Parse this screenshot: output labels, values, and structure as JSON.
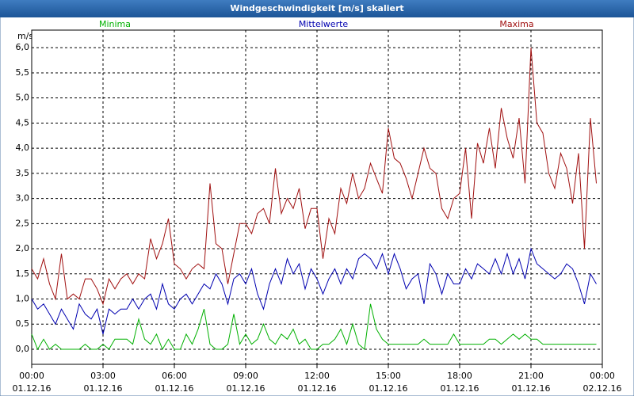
{
  "chart_data": {
    "type": "line",
    "title": "Windgeschwindigkeit [m/s] skaliert",
    "ylabel": "m/s",
    "grid": true,
    "xlim": [
      0,
      24
    ],
    "xticks": [
      {
        "value": 0,
        "label": "00:00"
      },
      {
        "value": 3,
        "label": "03:00"
      },
      {
        "value": 6,
        "label": "06:00"
      },
      {
        "value": 9,
        "label": "09:00"
      },
      {
        "value": 12,
        "label": "12:00"
      },
      {
        "value": 15,
        "label": "15:00"
      },
      {
        "value": 18,
        "label": "18:00"
      },
      {
        "value": 21,
        "label": "21:00"
      },
      {
        "value": 24,
        "label": "00:00"
      }
    ],
    "xtick_dates": [
      "01.12.16",
      "01.12.16",
      "01.12.16",
      "01.12.16",
      "01.12.16",
      "01.12.16",
      "01.12.16",
      "01.12.16",
      "02.12.16"
    ],
    "ylim": [
      -0.3,
      6.35
    ],
    "yticks": [
      {
        "value": 0,
        "label": "0,0"
      },
      {
        "value": 0.5,
        "label": "0,5"
      },
      {
        "value": 1,
        "label": "1,0"
      },
      {
        "value": 1.5,
        "label": "1,5"
      },
      {
        "value": 2,
        "label": "2,0"
      },
      {
        "value": 2.5,
        "label": "2,5"
      },
      {
        "value": 3,
        "label": "3,0"
      },
      {
        "value": 3.5,
        "label": "3,5"
      },
      {
        "value": 4,
        "label": "4,0"
      },
      {
        "value": 4.5,
        "label": "4,5"
      },
      {
        "value": 5,
        "label": "5,0"
      },
      {
        "value": 5.5,
        "label": "5,5"
      },
      {
        "value": 6,
        "label": "6,0"
      }
    ],
    "x": [
      0,
      0.25,
      0.5,
      0.75,
      1,
      1.25,
      1.5,
      1.75,
      2,
      2.25,
      2.5,
      2.75,
      3,
      3.25,
      3.5,
      3.75,
      4,
      4.25,
      4.5,
      4.75,
      5,
      5.25,
      5.5,
      5.75,
      6,
      6.25,
      6.5,
      6.75,
      7,
      7.25,
      7.5,
      7.75,
      8,
      8.25,
      8.5,
      8.75,
      9,
      9.25,
      9.5,
      9.75,
      10,
      10.25,
      10.5,
      10.75,
      11,
      11.25,
      11.5,
      11.75,
      12,
      12.25,
      12.5,
      12.75,
      13,
      13.25,
      13.5,
      13.75,
      14,
      14.25,
      14.5,
      14.75,
      15,
      15.25,
      15.5,
      15.75,
      16,
      16.25,
      16.5,
      16.75,
      17,
      17.25,
      17.5,
      17.75,
      18,
      18.25,
      18.5,
      18.75,
      19,
      19.25,
      19.5,
      19.75,
      20,
      20.25,
      20.5,
      20.75,
      21,
      21.25,
      21.5,
      21.75,
      22,
      22.25,
      22.5,
      22.75,
      23,
      23.25,
      23.5,
      23.75
    ],
    "series": [
      {
        "name": "Minima",
        "color": "#00b000",
        "values": [
          0.3,
          0.0,
          0.2,
          0.0,
          0.1,
          0.0,
          0.0,
          0.0,
          0.0,
          0.1,
          0.0,
          0.0,
          0.1,
          0.0,
          0.2,
          0.2,
          0.2,
          0.1,
          0.6,
          0.2,
          0.1,
          0.3,
          0.0,
          0.2,
          0.0,
          0.0,
          0.3,
          0.1,
          0.4,
          0.8,
          0.1,
          0.0,
          0.0,
          0.1,
          0.7,
          0.1,
          0.3,
          0.1,
          0.2,
          0.5,
          0.2,
          0.1,
          0.3,
          0.2,
          0.4,
          0.1,
          0.2,
          0.0,
          0.0,
          0.1,
          0.1,
          0.2,
          0.4,
          0.1,
          0.5,
          0.1,
          0.0,
          0.9,
          0.4,
          0.2,
          0.1,
          0.1,
          0.1,
          0.1,
          0.1,
          0.1,
          0.2,
          0.1,
          0.1,
          0.1,
          0.1,
          0.3,
          0.1,
          0.1,
          0.1,
          0.1,
          0.1,
          0.2,
          0.2,
          0.1,
          0.2,
          0.3,
          0.2,
          0.3,
          0.2,
          0.2,
          0.1,
          0.1,
          0.1,
          0.1,
          0.1,
          0.1,
          0.1,
          0.1,
          0.1,
          0.1
        ]
      },
      {
        "name": "Mittelwerte",
        "color": "#0000b0",
        "values": [
          1.0,
          0.8,
          0.9,
          0.7,
          0.5,
          0.8,
          0.6,
          0.4,
          0.9,
          0.7,
          0.6,
          0.8,
          0.3,
          0.8,
          0.7,
          0.8,
          0.8,
          1.0,
          0.8,
          1.0,
          1.1,
          0.8,
          1.3,
          0.9,
          0.8,
          1.0,
          1.1,
          0.9,
          1.1,
          1.3,
          1.2,
          1.5,
          1.3,
          0.9,
          1.4,
          1.5,
          1.3,
          1.6,
          1.1,
          0.8,
          1.3,
          1.6,
          1.3,
          1.8,
          1.5,
          1.7,
          1.2,
          1.6,
          1.4,
          1.1,
          1.4,
          1.6,
          1.3,
          1.6,
          1.4,
          1.8,
          1.9,
          1.8,
          1.6,
          1.9,
          1.5,
          1.9,
          1.6,
          1.2,
          1.4,
          1.5,
          0.9,
          1.7,
          1.5,
          1.1,
          1.5,
          1.3,
          1.3,
          1.6,
          1.4,
          1.7,
          1.6,
          1.5,
          1.8,
          1.5,
          1.9,
          1.5,
          1.8,
          1.4,
          2.0,
          1.7,
          1.6,
          1.5,
          1.4,
          1.5,
          1.7,
          1.6,
          1.3,
          0.9,
          1.5,
          1.3
        ]
      },
      {
        "name": "Maxima",
        "color": "#a01010",
        "values": [
          1.6,
          1.4,
          1.8,
          1.3,
          1.0,
          1.9,
          1.0,
          1.1,
          1.0,
          1.4,
          1.4,
          1.2,
          0.9,
          1.4,
          1.2,
          1.4,
          1.5,
          1.3,
          1.5,
          1.4,
          2.2,
          1.8,
          2.1,
          2.6,
          1.7,
          1.6,
          1.4,
          1.6,
          1.7,
          1.6,
          3.3,
          2.1,
          2.0,
          1.3,
          1.9,
          2.5,
          2.5,
          2.3,
          2.7,
          2.8,
          2.5,
          3.6,
          2.7,
          3.0,
          2.8,
          3.2,
          2.4,
          2.8,
          2.8,
          1.8,
          2.6,
          2.3,
          3.2,
          2.9,
          3.5,
          3.0,
          3.2,
          3.7,
          3.4,
          3.1,
          4.4,
          3.8,
          3.7,
          3.4,
          3.0,
          3.5,
          4.0,
          3.6,
          3.5,
          2.8,
          2.6,
          3.0,
          3.1,
          4.0,
          2.6,
          4.1,
          3.7,
          4.4,
          3.6,
          4.8,
          4.2,
          3.8,
          4.6,
          3.3,
          6.0,
          4.5,
          4.3,
          3.5,
          3.2,
          3.9,
          3.6,
          2.9,
          3.9,
          2.0,
          4.6,
          3.3
        ]
      }
    ]
  }
}
